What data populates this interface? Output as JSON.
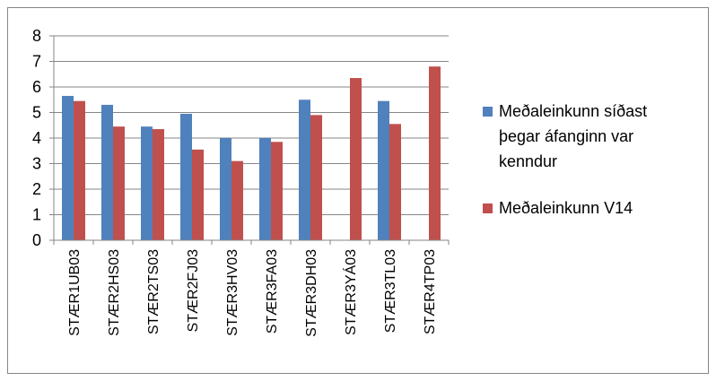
{
  "chart_data": {
    "type": "bar",
    "title": "",
    "xlabel": "",
    "ylabel": "",
    "ylim": [
      0,
      8
    ],
    "yticks": [
      0,
      1,
      2,
      3,
      4,
      5,
      6,
      7,
      8
    ],
    "grid": true,
    "legend_position": "right",
    "categories": [
      "STÆR1UB03",
      "STÆR2HS03",
      "STÆR2TS03",
      "STÆR2FJ03",
      "STÆR3HV03",
      "STÆR3FA03",
      "STÆR3DH03",
      "STÆR3YÁ03",
      "STÆR3TL03",
      "STÆR4TP03"
    ],
    "series": [
      {
        "name": "Meðaleinkunn síðast þegar áfanginn var kenndur",
        "legend_lines": [
          "Meðaleinkunn síðast",
          "þegar áfanginn var",
          "kenndur"
        ],
        "color": "#4F81BD",
        "values": [
          5.65,
          5.3,
          4.45,
          4.95,
          4.0,
          4.0,
          5.5,
          null,
          5.45,
          null
        ]
      },
      {
        "name": "Meðaleinkunn V14",
        "legend_lines": [
          "Meðaleinkunn V14"
        ],
        "color": "#C0504D",
        "values": [
          5.45,
          4.45,
          4.35,
          3.55,
          3.1,
          3.85,
          4.9,
          6.35,
          4.55,
          6.8
        ]
      }
    ]
  }
}
